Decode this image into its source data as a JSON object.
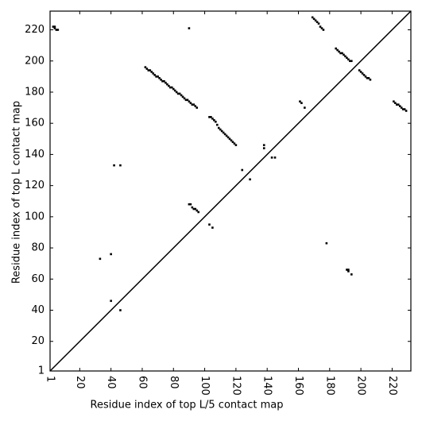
{
  "chart_data": {
    "type": "scatter",
    "xlabel": "Residue index of top L/5 contact map",
    "ylabel": "Residue index of top L contact map",
    "color": "#000000",
    "xlim": [
      1,
      232
    ],
    "ylim": [
      1,
      232
    ],
    "xticks": [
      1,
      20,
      40,
      60,
      80,
      100,
      120,
      140,
      160,
      180,
      200,
      220
    ],
    "yticks": [
      1,
      20,
      40,
      60,
      80,
      100,
      120,
      140,
      160,
      180,
      200,
      220
    ],
    "grid": false,
    "x": [
      3,
      4,
      4,
      5,
      6,
      90,
      62,
      63,
      64,
      65,
      66,
      67,
      68,
      69,
      70,
      71,
      72,
      73,
      74,
      75,
      76,
      77,
      78,
      79,
      80,
      81,
      82,
      83,
      84,
      85,
      86,
      87,
      88,
      89,
      90,
      91,
      92,
      93,
      94,
      95,
      42,
      46,
      90,
      91,
      92,
      93,
      94,
      95,
      96,
      103,
      105,
      33,
      40,
      40,
      46,
      103,
      104,
      105,
      106,
      107,
      108,
      109,
      110,
      111,
      112,
      113,
      114,
      115,
      116,
      117,
      118,
      119,
      120,
      124,
      129,
      138,
      138,
      143,
      145,
      161,
      162,
      164,
      169,
      170,
      171,
      172,
      173,
      174,
      175,
      176,
      184,
      185,
      186,
      187,
      188,
      189,
      190,
      191,
      192,
      193,
      194,
      199,
      200,
      201,
      202,
      203,
      204,
      205,
      206,
      221,
      222,
      223,
      224,
      225,
      226,
      227,
      228,
      229,
      178,
      191,
      192,
      192,
      194
    ],
    "values": [
      222,
      222,
      221,
      220,
      220,
      221,
      196,
      195,
      194,
      194,
      193,
      192,
      191,
      190,
      190,
      189,
      188,
      187,
      187,
      186,
      185,
      184,
      183,
      183,
      182,
      181,
      180,
      179,
      179,
      178,
      177,
      176,
      175,
      175,
      174,
      173,
      172,
      172,
      171,
      170,
      133,
      133,
      108,
      108,
      106,
      105,
      105,
      104,
      103,
      95,
      93,
      73,
      76,
      46,
      40,
      164,
      164,
      163,
      162,
      161,
      159,
      157,
      156,
      155,
      154,
      153,
      152,
      151,
      150,
      149,
      148,
      147,
      146,
      130,
      124,
      146,
      144,
      138,
      138,
      174,
      173,
      170,
      228,
      227,
      226,
      225,
      224,
      222,
      221,
      220,
      208,
      207,
      206,
      205,
      205,
      204,
      203,
      202,
      201,
      200,
      200,
      194,
      193,
      192,
      191,
      190,
      189,
      189,
      188,
      174,
      173,
      172,
      172,
      171,
      170,
      169,
      169,
      168,
      83,
      66,
      65,
      66,
      63
    ]
  }
}
